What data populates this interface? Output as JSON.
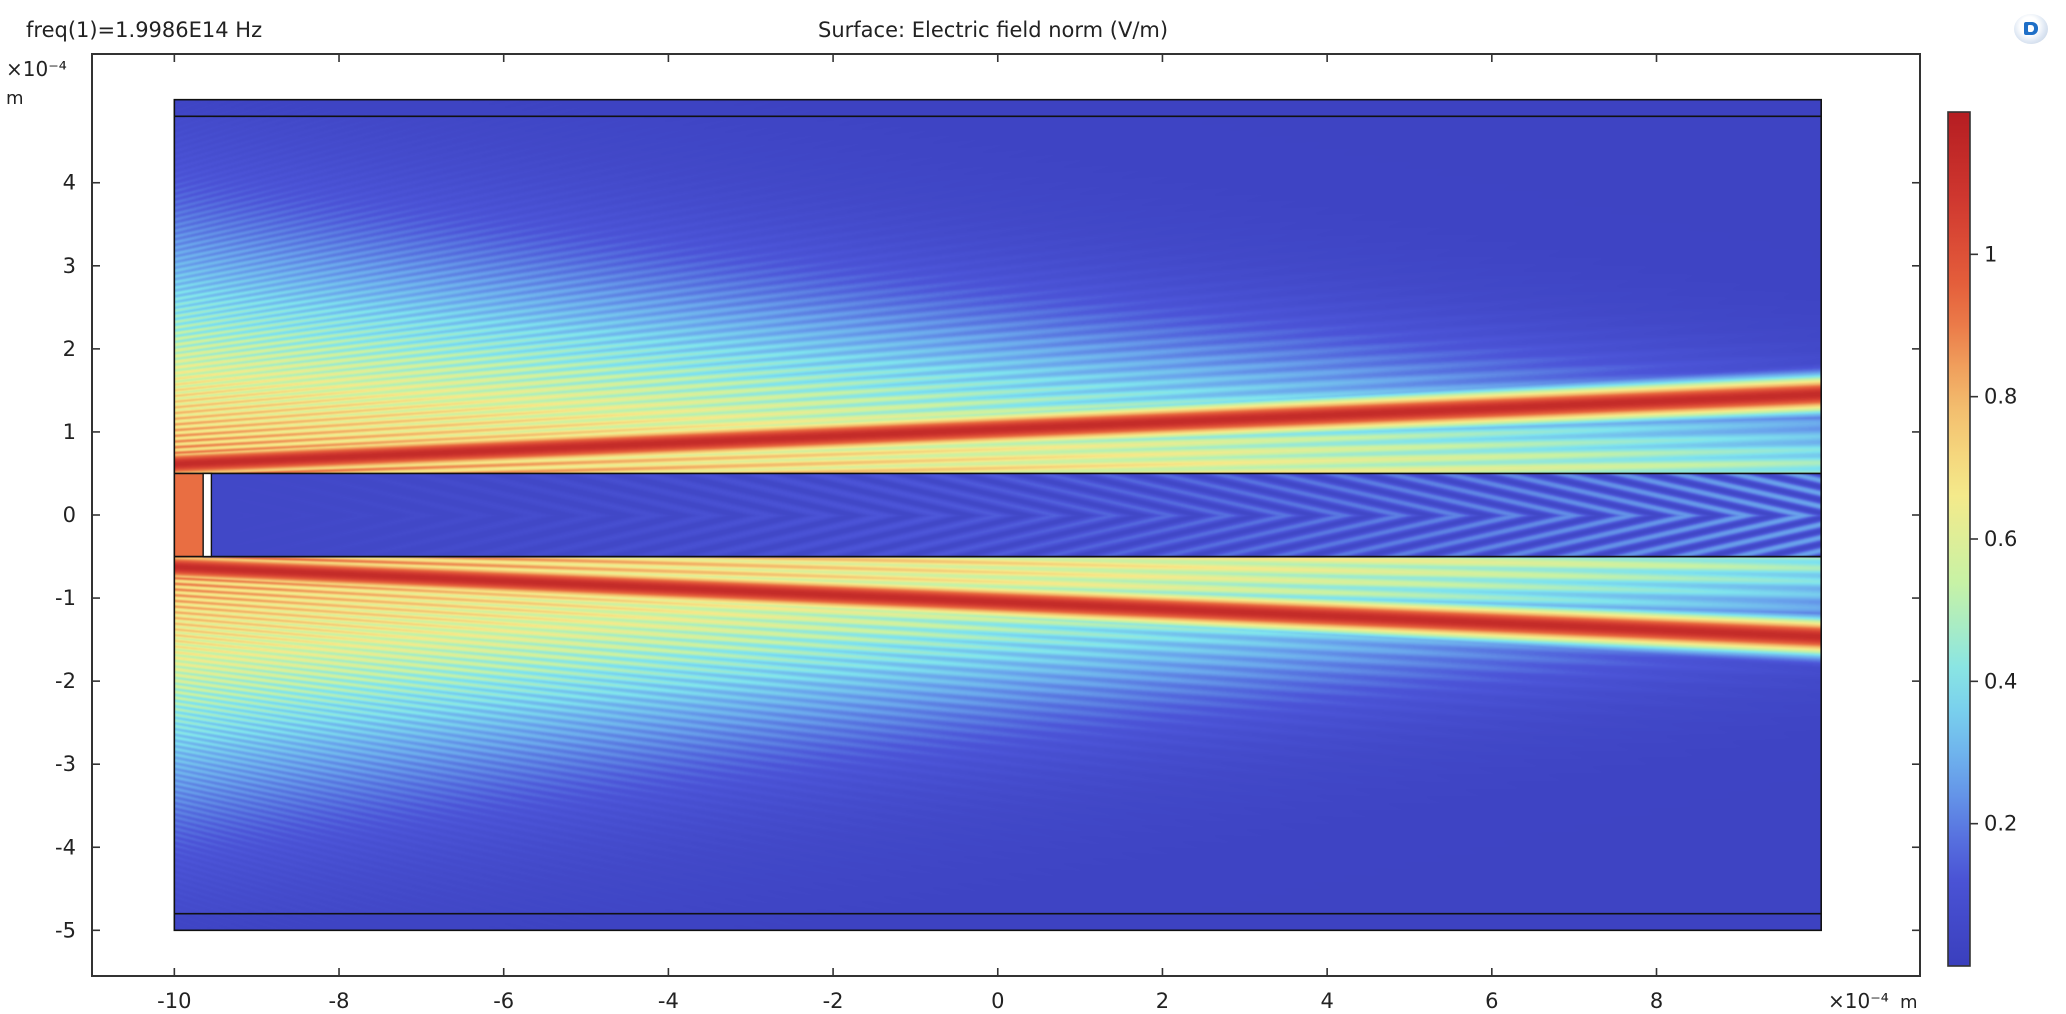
{
  "header": {
    "freq_label": "freq(1)=1.9986E14 Hz",
    "plot_title": "Surface: Electric field norm (V/m)"
  },
  "colors": {
    "axis": "#333333",
    "domain_edge": "#111111",
    "rainbow": [
      "#3a3fbd",
      "#4c55d8",
      "#6aa4ec",
      "#7fe3ee",
      "#c6f2a6",
      "#f6ea8a",
      "#f3b86a",
      "#e8673e",
      "#d23a30",
      "#b51d22"
    ]
  },
  "chart_data": {
    "type": "heatmap",
    "title": "Surface: Electric field norm (V/m)",
    "annotation": "freq(1)=1.9986E14 Hz",
    "x_axis": {
      "range": [
        -11,
        11.2
      ],
      "ticks": [
        -10,
        -8,
        -6,
        -4,
        -2,
        0,
        2,
        4,
        6,
        8
      ],
      "tick_labels": [
        "-10",
        "-8",
        "-6",
        "-4",
        "-2",
        "0",
        "2",
        "4",
        "6",
        "8"
      ],
      "multiplier": "×10⁻⁴",
      "unit": "m"
    },
    "y_axis": {
      "range": [
        -5.55,
        5.55
      ],
      "ticks": [
        -5,
        -4,
        -3,
        -2,
        -1,
        0,
        1,
        2,
        3,
        4
      ],
      "tick_labels": [
        "-5",
        "-4",
        "-3",
        "-2",
        "-1",
        "0",
        "1",
        "2",
        "3",
        "4"
      ],
      "multiplier": "×10⁻⁴",
      "unit": "m"
    },
    "domain": {
      "x": [
        -10,
        10
      ],
      "y": [
        -5,
        5
      ],
      "pml_y": [
        -4.8,
        4.8
      ],
      "waveguide_y": [
        -0.5,
        0.5
      ],
      "source_block_x": [
        -10,
        -9.65
      ],
      "gap_x": [
        -9.65,
        -9.55
      ]
    },
    "colorbar": {
      "range": [
        0,
        1.2
      ],
      "ticks": [
        0.2,
        0.4,
        0.6,
        0.8,
        1
      ],
      "tick_labels": [
        "0.2",
        "0.4",
        "0.6",
        "0.8",
        "1"
      ]
    },
    "grid": false
  }
}
